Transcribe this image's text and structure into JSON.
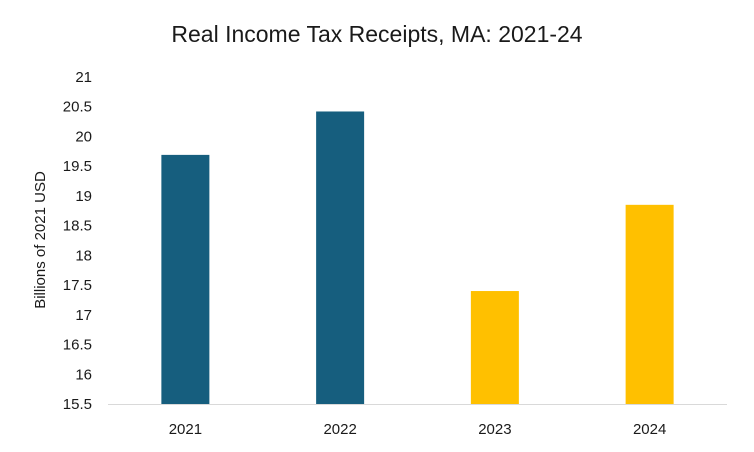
{
  "chart_data": {
    "type": "bar",
    "title": "Real Income Tax Receipts, MA: 2021-24",
    "xlabel": "",
    "ylabel": "Billions of 2021 USD",
    "categories": [
      "2021",
      "2022",
      "2023",
      "2024"
    ],
    "values": [
      19.69,
      20.42,
      17.4,
      18.85
    ],
    "bar_colors": [
      "#165e7e",
      "#165e7e",
      "#ffc000",
      "#ffc000"
    ],
    "ylim": [
      15.5,
      21
    ],
    "yticks": [
      "15.5",
      "16",
      "16.5",
      "17",
      "17.5",
      "18",
      "18.5",
      "19",
      "19.5",
      "20",
      "20.5",
      "21"
    ],
    "grid": false,
    "legend": "none"
  }
}
